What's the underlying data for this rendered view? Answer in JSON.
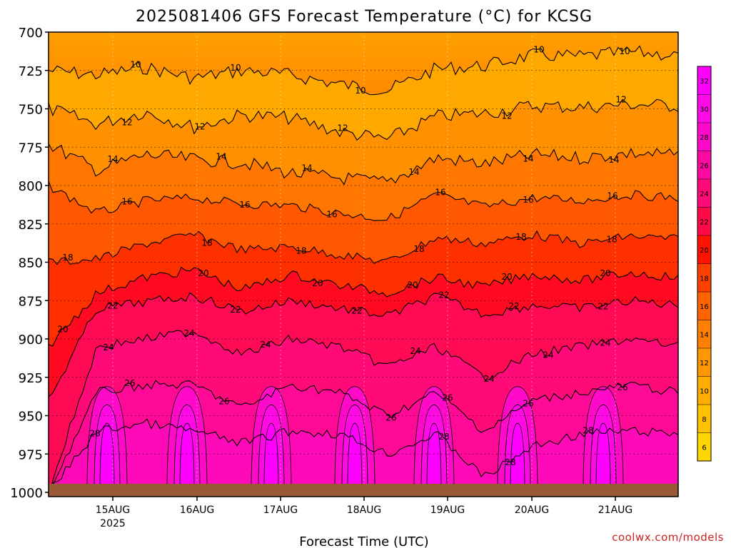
{
  "chart_data": {
    "type": "heatmap",
    "title": "2025081406 GFS Forecast Temperature (°C) for KCSG",
    "xlabel": "Forecast Time (UTC)",
    "ylabel": "",
    "y_ticks": [
      "700",
      "725",
      "750",
      "775",
      "800",
      "825",
      "850",
      "875",
      "900",
      "925",
      "950",
      "975",
      "1000"
    ],
    "x_ticks": [
      "15AUG",
      "16AUG",
      "17AUG",
      "18AUG",
      "19AUG",
      "20AUG",
      "21AUG"
    ],
    "x_year": "2025",
    "colorbar": {
      "ticks": [
        "6",
        "8",
        "10",
        "12",
        "14",
        "16",
        "18",
        "20",
        "22",
        "24",
        "26",
        "28",
        "30",
        "32"
      ],
      "colors": [
        "#ffd700",
        "#ffc200",
        "#ffad00",
        "#ff9800",
        "#ff8000",
        "#ff6400",
        "#ff4000",
        "#ff1200",
        "#ff0a46",
        "#ff0a78",
        "#ff0aa0",
        "#ff0ac8",
        "#ff0ae8",
        "#ff00ff"
      ]
    },
    "contour_levels": [
      {
        "level": 10,
        "pressure": [
          725,
          728,
          723,
          730,
          725,
          728,
          734,
          738,
          724,
          722,
          715,
          716,
          713,
          715
        ]
      },
      {
        "level": 12,
        "pressure": [
          750,
          760,
          752,
          762,
          754,
          756,
          765,
          770,
          755,
          753,
          748,
          749,
          747,
          748
        ]
      },
      {
        "level": 14,
        "pressure": [
          773,
          790,
          780,
          783,
          785,
          792,
          795,
          798,
          782,
          786,
          780,
          782,
          779,
          780
        ]
      },
      {
        "level": 16,
        "pressure": [
          800,
          818,
          810,
          808,
          812,
          813,
          818,
          822,
          806,
          814,
          808,
          810,
          806,
          808
        ]
      },
      {
        "level": 18,
        "pressure": [
          850,
          848,
          838,
          832,
          842,
          840,
          845,
          850,
          834,
          838,
          832,
          838,
          833,
          835
        ]
      },
      {
        "level": 20,
        "pressure": [
          905,
          870,
          860,
          855,
          868,
          858,
          865,
          870,
          860,
          866,
          858,
          862,
          857,
          860
        ]
      },
      {
        "level": 22,
        "pressure": [
          940,
          880,
          876,
          872,
          882,
          875,
          880,
          885,
          872,
          884,
          878,
          880,
          875,
          878
        ]
      },
      {
        "level": 24,
        "pressure": [
          1000,
          905,
          900,
          895,
          910,
          900,
          905,
          918,
          905,
          925,
          910,
          905,
          900,
          905
        ]
      },
      {
        "level": 26,
        "pressure": [
          1000,
          935,
          930,
          930,
          945,
          930,
          935,
          950,
          935,
          960,
          940,
          935,
          930,
          935
        ]
      },
      {
        "level": 28,
        "pressure": [
          1000,
          960,
          955,
          960,
          968,
          960,
          962,
          975,
          962,
          990,
          970,
          962,
          960,
          962
        ]
      }
    ]
  },
  "credit": "coolwx.com/models"
}
